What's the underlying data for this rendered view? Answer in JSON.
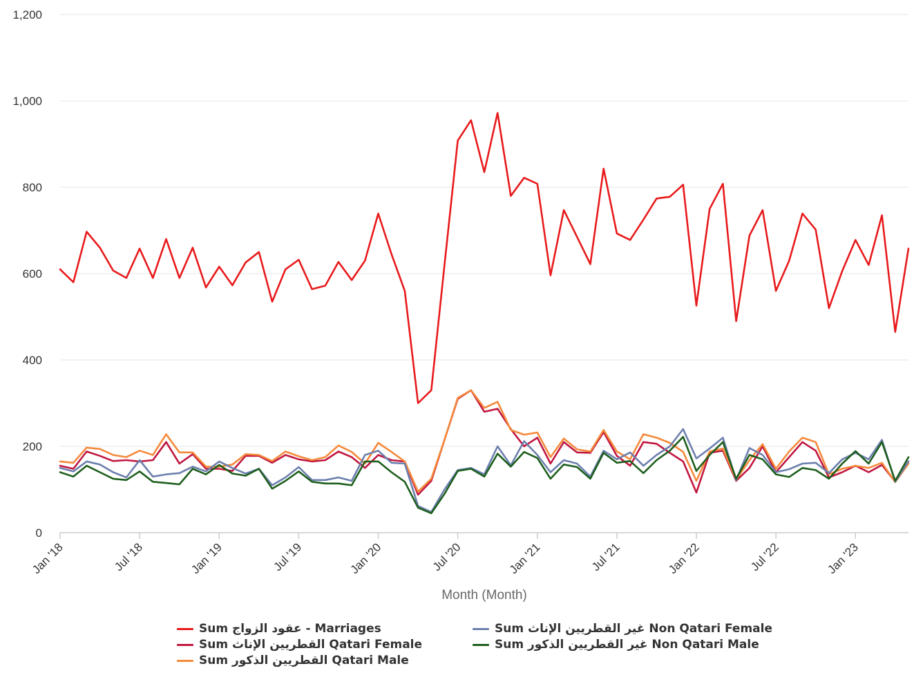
{
  "chart_data": {
    "type": "line",
    "title": "",
    "xlabel": "Month (Month)",
    "ylabel": "",
    "ylim": [
      0,
      1200
    ],
    "yticks": [
      "0",
      "200",
      "400",
      "600",
      "800",
      "1,000",
      "1,200"
    ],
    "ytick_values": [
      0,
      200,
      400,
      600,
      800,
      1000,
      1200
    ],
    "x_start": "Jan '18",
    "x_tick_labels": [
      "Jan '18",
      "Jul '18",
      "Jan '19",
      "Jul '19",
      "Jan '20",
      "Jul '20",
      "Jan '21",
      "Jul '21",
      "Jan '22",
      "Jul '22",
      "Jan '23"
    ],
    "grid": true,
    "legend_position": "bottom",
    "series": [
      {
        "name": "Sum عقود الزواج - Marriages",
        "color": "#e8191b",
        "values": [
          610,
          580,
          697,
          660,
          607,
          590,
          658,
          590,
          680,
          590,
          660,
          568,
          616,
          573,
          626,
          650,
          535,
          610,
          632,
          564,
          572,
          627,
          585,
          630,
          739,
          645,
          560,
          300,
          330,
          620,
          908,
          955,
          835,
          972,
          780,
          822,
          808,
          596,
          747,
          685,
          622,
          843,
          693,
          678,
          725,
          774,
          778,
          806,
          526,
          750,
          808,
          490,
          688,
          747,
          560,
          630,
          739,
          702,
          520,
          606,
          678,
          620,
          735,
          465,
          658
        ]
      },
      {
        "name": "Sum القطريين الإناث Qatari Female",
        "color": "#c0163f",
        "values": [
          155,
          148,
          188,
          178,
          166,
          168,
          165,
          168,
          210,
          160,
          182,
          148,
          148,
          143,
          178,
          178,
          162,
          180,
          170,
          165,
          168,
          188,
          175,
          150,
          180,
          168,
          165,
          88,
          120,
          215,
          310,
          330,
          280,
          287,
          240,
          200,
          220,
          160,
          210,
          186,
          185,
          233,
          178,
          155,
          210,
          206,
          185,
          165,
          93,
          185,
          190,
          120,
          150,
          200,
          140,
          175,
          210,
          190,
          128,
          140,
          155,
          140,
          157,
          118,
          165
        ]
      },
      {
        "name": "Sum القطريين الذكور Qatari Male",
        "color": "#f5893a",
        "values": [
          165,
          162,
          197,
          194,
          180,
          175,
          190,
          180,
          228,
          186,
          186,
          153,
          153,
          158,
          182,
          180,
          166,
          188,
          177,
          168,
          175,
          202,
          187,
          160,
          208,
          187,
          165,
          95,
          125,
          215,
          312,
          330,
          289,
          303,
          238,
          227,
          232,
          175,
          218,
          193,
          188,
          238,
          188,
          170,
          228,
          220,
          208,
          187,
          120,
          188,
          195,
          123,
          168,
          205,
          148,
          188,
          220,
          210,
          135,
          148,
          155,
          150,
          162,
          117,
          160
        ]
      },
      {
        "name": "Sum غير القطريين الإناث Non Qatari Female",
        "color": "#6c7fad",
        "values": [
          150,
          142,
          165,
          158,
          140,
          128,
          168,
          130,
          135,
          138,
          153,
          142,
          165,
          150,
          137,
          148,
          110,
          128,
          152,
          122,
          122,
          128,
          120,
          180,
          190,
          162,
          160,
          62,
          48,
          100,
          145,
          150,
          135,
          200,
          156,
          212,
          180,
          140,
          168,
          160,
          130,
          190,
          170,
          186,
          155,
          180,
          200,
          240,
          172,
          195,
          220,
          122,
          196,
          180,
          140,
          147,
          160,
          162,
          138,
          170,
          185,
          170,
          215,
          118,
          165
        ]
      },
      {
        "name": "Sum غير القطريين الذكور Non Qatari Male",
        "color": "#1d5e1c",
        "values": [
          140,
          130,
          155,
          140,
          125,
          122,
          142,
          118,
          115,
          112,
          148,
          135,
          157,
          137,
          132,
          148,
          102,
          120,
          142,
          118,
          114,
          114,
          110,
          165,
          165,
          140,
          118,
          58,
          45,
          90,
          143,
          148,
          130,
          183,
          153,
          187,
          173,
          125,
          158,
          152,
          125,
          185,
          162,
          166,
          138,
          168,
          190,
          222,
          143,
          180,
          210,
          125,
          180,
          170,
          135,
          129,
          150,
          145,
          125,
          160,
          189,
          160,
          210,
          120,
          175
        ]
      }
    ]
  }
}
